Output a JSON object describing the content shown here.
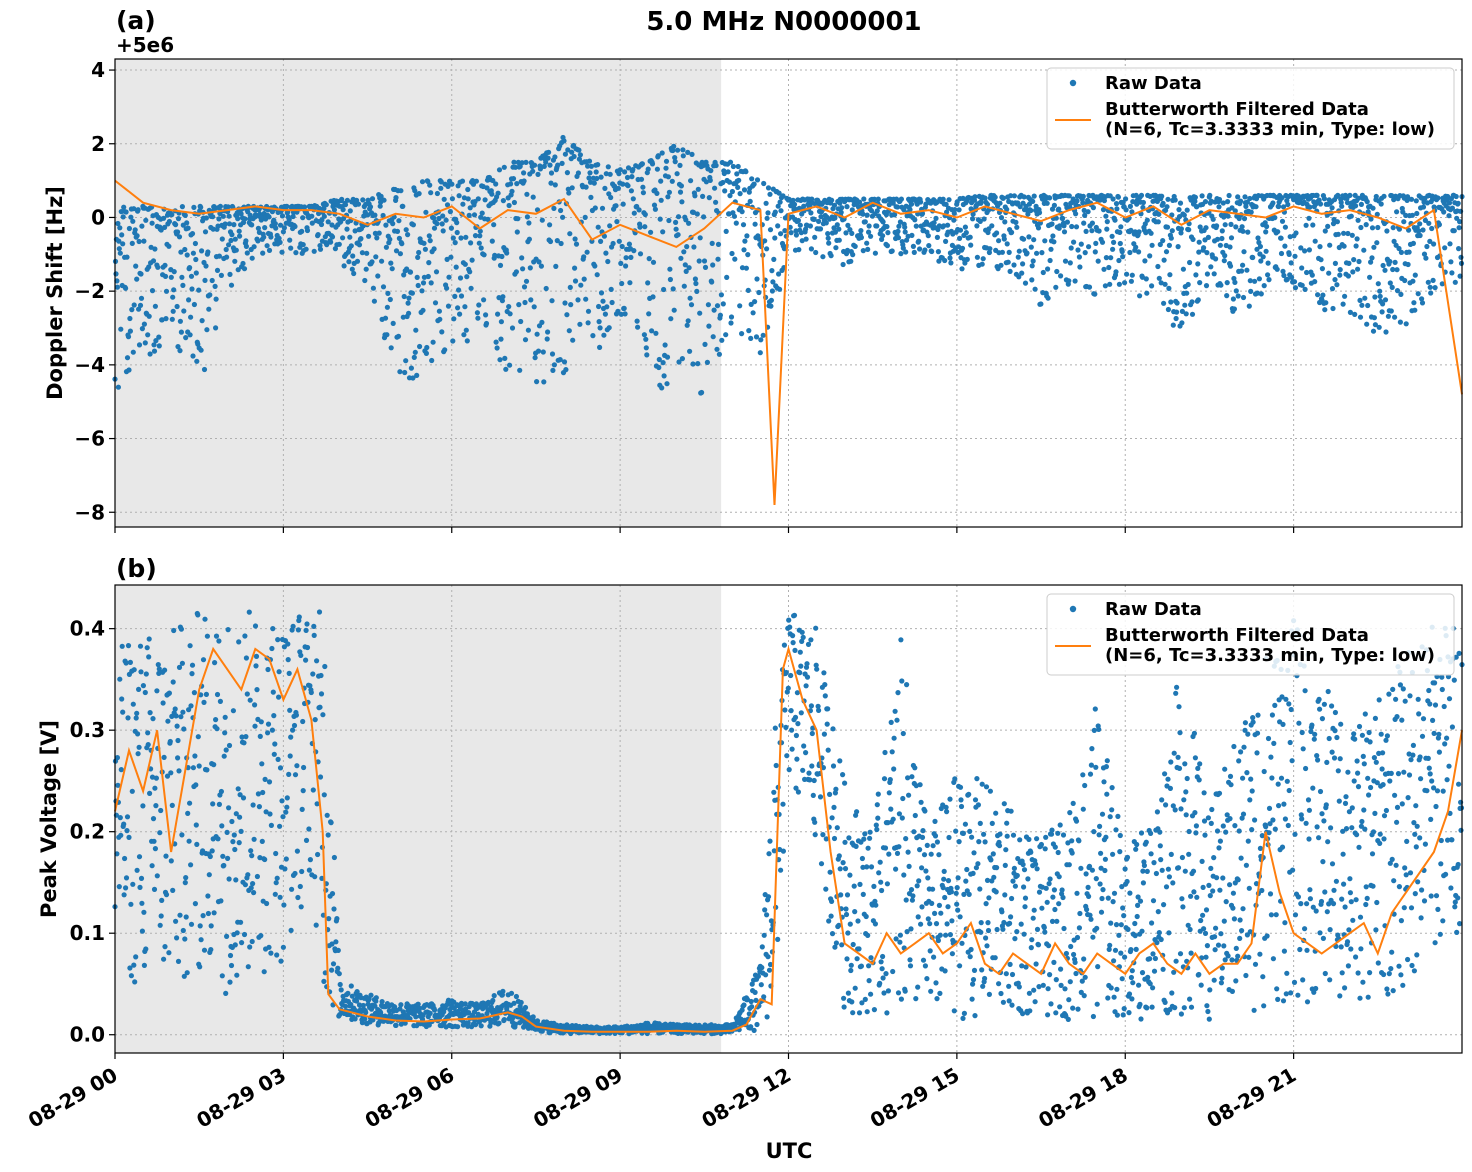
{
  "title": "5.0 MHz N0000001",
  "xlabel": "UTC",
  "x_tick_labels": [
    "08-29 00",
    "08-29 03",
    "08-29 06",
    "08-29 09",
    "08-29 12",
    "08-29 15",
    "08-29 18",
    "08-29 21"
  ],
  "colors": {
    "raw": "#1f77b4",
    "filtered": "#ff7f0e",
    "night_shade": "#e8e8e8",
    "grid": "#b0b0b0"
  },
  "legend": {
    "raw": "Raw Data",
    "filtered_line1": "Butterworth Filtered Data",
    "filtered_line2": "(N=6, Tc=3.3333 min, Type: low)"
  },
  "chart_data": [
    {
      "type": "scatter",
      "panel_label": "(a)",
      "ylabel": "Doppler Shift [Hz]",
      "offset_label": "+5e6",
      "xlim_hours": [
        0,
        24
      ],
      "ylim": [
        -8.4,
        4.3
      ],
      "yticks": [
        4,
        2,
        0,
        -2,
        -4,
        -6,
        -8
      ],
      "y_tick_labels": [
        "4",
        "2",
        "0",
        "−2",
        "−4",
        "−6",
        "−8"
      ],
      "grid": true,
      "legend_position": "top-right",
      "shaded_hours": [
        0,
        10.8
      ],
      "series": [
        {
          "name": "Raw Data",
          "style": "points",
          "envelope": [
            {
              "hour": 0.0,
              "min": -4.9,
              "max": 0.3
            },
            {
              "hour": 0.5,
              "min": -4.0,
              "max": 0.3
            },
            {
              "hour": 1.0,
              "min": -3.3,
              "max": 0.3
            },
            {
              "hour": 1.5,
              "min": -4.6,
              "max": 0.3
            },
            {
              "hour": 2.0,
              "min": -2.2,
              "max": 0.3
            },
            {
              "hour": 2.5,
              "min": -1.0,
              "max": 0.3
            },
            {
              "hour": 3.0,
              "min": -1.0,
              "max": 0.3
            },
            {
              "hour": 3.5,
              "min": -1.0,
              "max": 0.3
            },
            {
              "hour": 4.0,
              "min": -1.2,
              "max": 0.5
            },
            {
              "hour": 4.5,
              "min": -2.0,
              "max": 0.5
            },
            {
              "hour": 5.0,
              "min": -4.4,
              "max": 0.8
            },
            {
              "hour": 5.5,
              "min": -4.4,
              "max": 1.0
            },
            {
              "hour": 6.0,
              "min": -3.5,
              "max": 1.0
            },
            {
              "hour": 6.5,
              "min": -3.3,
              "max": 1.0
            },
            {
              "hour": 7.0,
              "min": -4.2,
              "max": 1.5
            },
            {
              "hour": 7.5,
              "min": -4.5,
              "max": 1.5
            },
            {
              "hour": 8.0,
              "min": -4.4,
              "max": 2.2
            },
            {
              "hour": 8.5,
              "min": -3.8,
              "max": 1.5
            },
            {
              "hour": 9.0,
              "min": -3.0,
              "max": 1.3
            },
            {
              "hour": 9.5,
              "min": -4.6,
              "max": 1.5
            },
            {
              "hour": 10.0,
              "min": -4.7,
              "max": 2.0
            },
            {
              "hour": 10.5,
              "min": -4.8,
              "max": 1.5
            },
            {
              "hour": 11.0,
              "min": -3.0,
              "max": 1.5
            },
            {
              "hour": 11.5,
              "min": -4.0,
              "max": 1.0
            },
            {
              "hour": 12.0,
              "min": -1.0,
              "max": 0.5
            },
            {
              "hour": 12.5,
              "min": -1.0,
              "max": 0.5
            },
            {
              "hour": 13.0,
              "min": -1.3,
              "max": 0.5
            },
            {
              "hour": 13.5,
              "min": -1.0,
              "max": 0.5
            },
            {
              "hour": 14.0,
              "min": -1.0,
              "max": 0.5
            },
            {
              "hour": 14.5,
              "min": -1.2,
              "max": 0.5
            },
            {
              "hour": 15.0,
              "min": -1.5,
              "max": 0.5
            },
            {
              "hour": 15.5,
              "min": -1.3,
              "max": 0.6
            },
            {
              "hour": 16.0,
              "min": -1.5,
              "max": 0.6
            },
            {
              "hour": 16.5,
              "min": -2.5,
              "max": 0.6
            },
            {
              "hour": 17.0,
              "min": -1.8,
              "max": 0.6
            },
            {
              "hour": 17.5,
              "min": -2.2,
              "max": 0.6
            },
            {
              "hour": 18.0,
              "min": -1.8,
              "max": 0.6
            },
            {
              "hour": 18.5,
              "min": -2.5,
              "max": 0.6
            },
            {
              "hour": 19.0,
              "min": -3.3,
              "max": 0.6
            },
            {
              "hour": 19.5,
              "min": -1.8,
              "max": 0.6
            },
            {
              "hour": 20.0,
              "min": -2.8,
              "max": 0.6
            },
            {
              "hour": 20.5,
              "min": -2.0,
              "max": 0.6
            },
            {
              "hour": 21.0,
              "min": -2.0,
              "max": 0.6
            },
            {
              "hour": 21.5,
              "min": -2.5,
              "max": 0.6
            },
            {
              "hour": 22.0,
              "min": -3.0,
              "max": 0.6
            },
            {
              "hour": 22.5,
              "min": -3.2,
              "max": 0.6
            },
            {
              "hour": 23.0,
              "min": -3.0,
              "max": 0.6
            },
            {
              "hour": 23.5,
              "min": -2.0,
              "max": 0.6
            },
            {
              "hour": 24.0,
              "min": -2.0,
              "max": 0.6
            }
          ]
        },
        {
          "name": "Butterworth Filtered Data (N=6, Tc=3.3333 min, Type: low)",
          "style": "line",
          "x_hours": [
            0.0,
            0.5,
            1.0,
            1.5,
            2.0,
            2.5,
            3.0,
            3.5,
            4.0,
            4.5,
            5.0,
            5.5,
            6.0,
            6.5,
            7.0,
            7.5,
            8.0,
            8.5,
            9.0,
            9.5,
            10.0,
            10.5,
            11.0,
            11.5,
            11.75,
            12.0,
            12.5,
            13.0,
            13.5,
            14.0,
            14.5,
            15.0,
            15.5,
            16.0,
            16.5,
            17.0,
            17.5,
            18.0,
            18.5,
            19.0,
            19.5,
            20.0,
            20.5,
            21.0,
            21.5,
            22.0,
            22.5,
            23.0,
            23.5,
            24.0
          ],
          "y": [
            1.0,
            0.4,
            0.2,
            0.1,
            0.2,
            0.3,
            0.2,
            0.2,
            0.1,
            -0.2,
            0.1,
            0.0,
            0.3,
            -0.3,
            0.2,
            0.1,
            0.5,
            -0.6,
            -0.2,
            -0.5,
            -0.8,
            -0.3,
            0.4,
            0.2,
            -7.8,
            0.1,
            0.3,
            0.0,
            0.4,
            0.1,
            0.2,
            0.0,
            0.3,
            0.1,
            -0.1,
            0.2,
            0.4,
            0.0,
            0.3,
            -0.2,
            0.2,
            0.1,
            0.0,
            0.3,
            0.1,
            0.2,
            0.0,
            -0.3,
            0.2,
            -4.8
          ]
        }
      ]
    },
    {
      "type": "scatter",
      "panel_label": "(b)",
      "ylabel": "Peak Voltage [V]",
      "xlim_hours": [
        0,
        24
      ],
      "ylim": [
        -0.018,
        0.443
      ],
      "yticks": [
        0.4,
        0.3,
        0.2,
        0.1,
        0.0
      ],
      "y_tick_labels": [
        "0.4",
        "0.3",
        "0.2",
        "0.1",
        "0.0"
      ],
      "grid": true,
      "legend_position": "top-right",
      "shaded_hours": [
        0,
        10.8
      ],
      "series": [
        {
          "name": "Raw Data",
          "style": "points",
          "envelope": [
            {
              "hour": 0.0,
              "min": 0.05,
              "max": 0.38
            },
            {
              "hour": 0.5,
              "min": 0.04,
              "max": 0.4
            },
            {
              "hour": 1.0,
              "min": 0.04,
              "max": 0.4
            },
            {
              "hour": 1.5,
              "min": 0.05,
              "max": 0.42
            },
            {
              "hour": 2.0,
              "min": 0.04,
              "max": 0.42
            },
            {
              "hour": 2.5,
              "min": 0.05,
              "max": 0.42
            },
            {
              "hour": 3.0,
              "min": 0.07,
              "max": 0.42
            },
            {
              "hour": 3.5,
              "min": 0.15,
              "max": 0.42
            },
            {
              "hour": 3.75,
              "min": 0.02,
              "max": 0.42
            },
            {
              "hour": 4.0,
              "min": 0.015,
              "max": 0.055
            },
            {
              "hour": 4.5,
              "min": 0.01,
              "max": 0.04
            },
            {
              "hour": 5.0,
              "min": 0.008,
              "max": 0.032
            },
            {
              "hour": 5.5,
              "min": 0.007,
              "max": 0.03
            },
            {
              "hour": 6.0,
              "min": 0.007,
              "max": 0.035
            },
            {
              "hour": 6.5,
              "min": 0.007,
              "max": 0.03
            },
            {
              "hour": 7.0,
              "min": 0.008,
              "max": 0.048
            },
            {
              "hour": 7.5,
              "min": 0.003,
              "max": 0.015
            },
            {
              "hour": 8.0,
              "min": 0.001,
              "max": 0.01
            },
            {
              "hour": 8.5,
              "min": 0.001,
              "max": 0.008
            },
            {
              "hour": 9.0,
              "min": 0.001,
              "max": 0.008
            },
            {
              "hour": 9.5,
              "min": 0.001,
              "max": 0.012
            },
            {
              "hour": 10.0,
              "min": 0.001,
              "max": 0.01
            },
            {
              "hour": 10.5,
              "min": 0.001,
              "max": 0.01
            },
            {
              "hour": 11.0,
              "min": 0.001,
              "max": 0.01
            },
            {
              "hour": 11.5,
              "min": 0.005,
              "max": 0.07
            },
            {
              "hour": 11.75,
              "min": 0.02,
              "max": 0.3
            },
            {
              "hour": 12.0,
              "min": 0.25,
              "max": 0.42
            },
            {
              "hour": 12.5,
              "min": 0.18,
              "max": 0.4
            },
            {
              "hour": 13.0,
              "min": 0.02,
              "max": 0.25
            },
            {
              "hour": 13.5,
              "min": 0.02,
              "max": 0.2
            },
            {
              "hour": 14.0,
              "min": 0.02,
              "max": 0.39
            },
            {
              "hour": 14.5,
              "min": 0.02,
              "max": 0.2
            },
            {
              "hour": 15.0,
              "min": 0.015,
              "max": 0.26
            },
            {
              "hour": 15.5,
              "min": 0.015,
              "max": 0.25
            },
            {
              "hour": 16.0,
              "min": 0.015,
              "max": 0.22
            },
            {
              "hour": 16.5,
              "min": 0.015,
              "max": 0.19
            },
            {
              "hour": 17.0,
              "min": 0.015,
              "max": 0.22
            },
            {
              "hour": 17.5,
              "min": 0.015,
              "max": 0.33
            },
            {
              "hour": 18.0,
              "min": 0.015,
              "max": 0.18
            },
            {
              "hour": 18.5,
              "min": 0.015,
              "max": 0.22
            },
            {
              "hour": 19.0,
              "min": 0.015,
              "max": 0.37
            },
            {
              "hour": 19.5,
              "min": 0.015,
              "max": 0.22
            },
            {
              "hour": 20.0,
              "min": 0.015,
              "max": 0.3
            },
            {
              "hour": 20.5,
              "min": 0.02,
              "max": 0.38
            },
            {
              "hour": 21.0,
              "min": 0.03,
              "max": 0.41
            },
            {
              "hour": 21.5,
              "min": 0.03,
              "max": 0.35
            },
            {
              "hour": 22.0,
              "min": 0.03,
              "max": 0.3
            },
            {
              "hour": 22.5,
              "min": 0.03,
              "max": 0.33
            },
            {
              "hour": 23.0,
              "min": 0.04,
              "max": 0.38
            },
            {
              "hour": 23.5,
              "min": 0.08,
              "max": 0.41
            },
            {
              "hour": 24.0,
              "min": 0.1,
              "max": 0.41
            }
          ]
        },
        {
          "name": "Butterworth Filtered Data (N=6, Tc=3.3333 min, Type: low)",
          "style": "line",
          "x_hours": [
            0.0,
            0.25,
            0.5,
            0.75,
            1.0,
            1.25,
            1.5,
            1.75,
            2.0,
            2.25,
            2.5,
            2.75,
            3.0,
            3.25,
            3.5,
            3.7,
            3.8,
            4.0,
            4.5,
            5.0,
            5.5,
            6.0,
            6.5,
            7.0,
            7.25,
            7.5,
            8.0,
            8.5,
            9.0,
            9.5,
            10.0,
            10.5,
            11.0,
            11.25,
            11.5,
            11.7,
            11.9,
            12.0,
            12.25,
            12.5,
            12.75,
            13.0,
            13.25,
            13.5,
            13.75,
            14.0,
            14.25,
            14.5,
            14.75,
            15.0,
            15.25,
            15.5,
            15.75,
            16.0,
            16.25,
            16.5,
            16.75,
            17.0,
            17.25,
            17.5,
            17.75,
            18.0,
            18.25,
            18.5,
            18.75,
            19.0,
            19.25,
            19.5,
            19.75,
            20.0,
            20.25,
            20.5,
            20.75,
            21.0,
            21.25,
            21.5,
            21.75,
            22.0,
            22.25,
            22.5,
            22.75,
            23.0,
            23.25,
            23.5,
            23.75,
            24.0
          ],
          "y": [
            0.22,
            0.28,
            0.24,
            0.3,
            0.18,
            0.26,
            0.34,
            0.38,
            0.36,
            0.34,
            0.38,
            0.37,
            0.33,
            0.36,
            0.31,
            0.2,
            0.04,
            0.025,
            0.018,
            0.014,
            0.013,
            0.015,
            0.016,
            0.022,
            0.018,
            0.008,
            0.004,
            0.003,
            0.003,
            0.003,
            0.004,
            0.003,
            0.004,
            0.01,
            0.035,
            0.03,
            0.36,
            0.38,
            0.33,
            0.3,
            0.18,
            0.09,
            0.08,
            0.07,
            0.1,
            0.08,
            0.09,
            0.1,
            0.08,
            0.09,
            0.11,
            0.07,
            0.06,
            0.08,
            0.07,
            0.06,
            0.09,
            0.07,
            0.06,
            0.08,
            0.07,
            0.06,
            0.08,
            0.09,
            0.07,
            0.06,
            0.08,
            0.06,
            0.07,
            0.07,
            0.09,
            0.2,
            0.14,
            0.1,
            0.09,
            0.08,
            0.09,
            0.1,
            0.11,
            0.08,
            0.12,
            0.14,
            0.16,
            0.18,
            0.22,
            0.3
          ]
        }
      ]
    }
  ]
}
